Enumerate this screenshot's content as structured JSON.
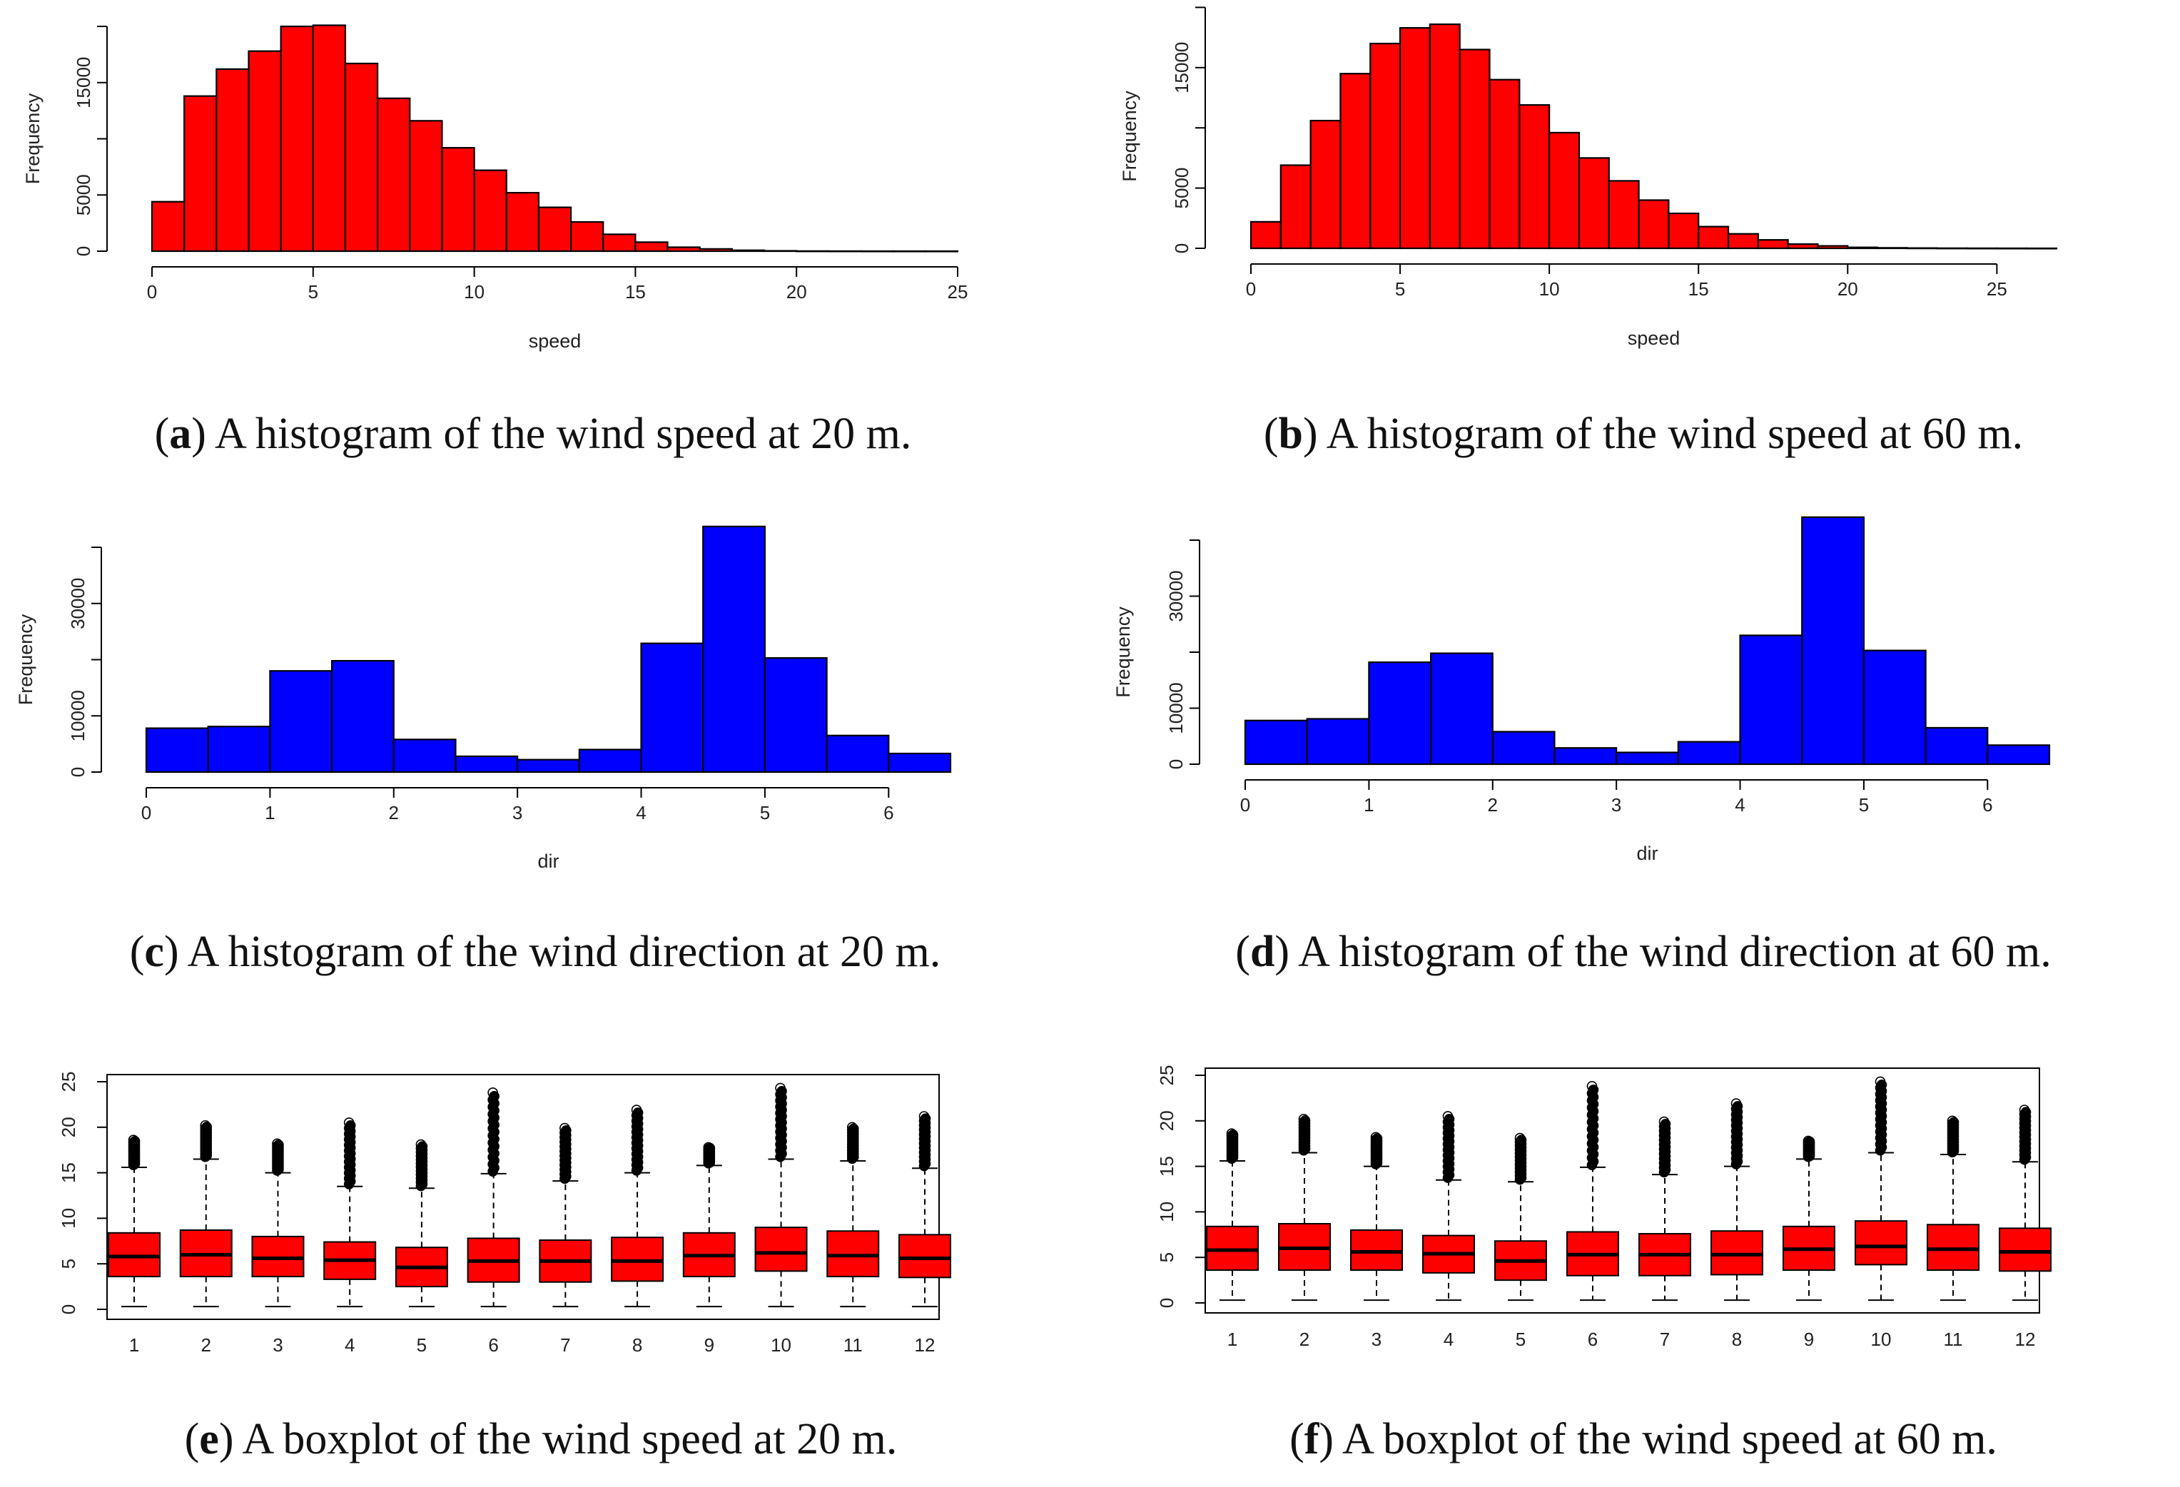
{
  "colors": {
    "speed_bar": "#ff0000",
    "dir_bar": "#0000ff",
    "box_fill": "#ff0000",
    "outline": "#000000"
  },
  "captions": [
    {
      "letter": "a",
      "text": ") A histogram of the wind speed at 20 m."
    },
    {
      "letter": "b",
      "text": ") A histogram of the wind speed at 60 m."
    },
    {
      "letter": "c",
      "text": ") A histogram of the wind direction at 20 m."
    },
    {
      "letter": "d",
      "text": ") A histogram of the wind direction at 60 m."
    },
    {
      "letter": "e",
      "text": ") A boxplot of the wind speed at 20 m."
    },
    {
      "letter": "f",
      "text": ") A boxplot of the wind speed at 60 m."
    }
  ],
  "chart_data": [
    {
      "type": "bar",
      "subtype": "histogram",
      "xlabel": "speed",
      "ylabel": "Frequency",
      "bin_width": 1,
      "bin_start": 0,
      "values": [
        4400,
        13800,
        16200,
        17800,
        20000,
        20100,
        16700,
        13600,
        11600,
        9200,
        7200,
        5200,
        3900,
        2600,
        1500,
        800,
        350,
        200,
        80,
        30,
        10,
        5,
        2,
        1,
        1
      ],
      "xlim": [
        0,
        25
      ],
      "ylim": [
        0,
        20000
      ],
      "xticks": [
        0,
        5,
        10,
        15,
        20,
        25
      ],
      "yticks": [
        0,
        5000,
        15000
      ]
    },
    {
      "type": "bar",
      "subtype": "histogram",
      "xlabel": "speed",
      "ylabel": "Frequency",
      "bin_width": 1,
      "bin_start": 0,
      "values": [
        2200,
        6900,
        10600,
        14500,
        17000,
        18300,
        18600,
        16500,
        14000,
        11900,
        9600,
        7500,
        5600,
        4000,
        2900,
        1800,
        1200,
        700,
        350,
        200,
        80,
        40,
        20,
        10,
        5,
        3,
        1
      ],
      "xlim": [
        0,
        27
      ],
      "ylim": [
        0,
        18600
      ],
      "xticks": [
        0,
        5,
        10,
        15,
        20,
        25
      ],
      "yticks": [
        0,
        5000,
        15000
      ]
    },
    {
      "type": "bar",
      "subtype": "histogram",
      "xlabel": "dir",
      "ylabel": "Frequency",
      "bin_width": 0.5,
      "bin_start": 0,
      "values": [
        7800,
        8100,
        18000,
        19800,
        5800,
        2800,
        2200,
        4000,
        22900,
        43700,
        20300,
        6500,
        3300
      ],
      "xlim": [
        0,
        6.5
      ],
      "ylim": [
        0,
        40000
      ],
      "xticks": [
        0,
        1,
        2,
        3,
        4,
        5,
        6
      ],
      "yticks": [
        0,
        10000,
        30000
      ]
    },
    {
      "type": "bar",
      "subtype": "histogram",
      "xlabel": "dir",
      "ylabel": "Frequency",
      "bin_width": 0.5,
      "bin_start": 0,
      "values": [
        7800,
        8100,
        18200,
        19800,
        5800,
        2900,
        2100,
        4000,
        23000,
        44100,
        20300,
        6500,
        3400
      ],
      "xlim": [
        0,
        6.5
      ],
      "ylim": [
        0,
        40000
      ],
      "xticks": [
        0,
        1,
        2,
        3,
        4,
        5,
        6
      ],
      "yticks": [
        0,
        10000,
        30000
      ]
    },
    {
      "type": "box",
      "categories": [
        "1",
        "2",
        "3",
        "4",
        "5",
        "6",
        "7",
        "8",
        "9",
        "10",
        "11",
        "12"
      ],
      "ylim": [
        0,
        25
      ],
      "yticks": [
        0,
        5,
        10,
        15,
        20,
        25
      ],
      "boxes": [
        {
          "min": 0.3,
          "q1": 3.6,
          "median": 5.8,
          "q3": 8.4,
          "max": 15.6,
          "outlier_top": 18.6
        },
        {
          "min": 0.3,
          "q1": 3.6,
          "median": 6.0,
          "q3": 8.7,
          "max": 16.5,
          "outlier_top": 20.2
        },
        {
          "min": 0.3,
          "q1": 3.6,
          "median": 5.6,
          "q3": 8.0,
          "max": 15.0,
          "outlier_top": 18.2
        },
        {
          "min": 0.3,
          "q1": 3.3,
          "median": 5.4,
          "q3": 7.4,
          "max": 13.5,
          "outlier_top": 20.5
        },
        {
          "min": 0.3,
          "q1": 2.5,
          "median": 4.6,
          "q3": 6.8,
          "max": 13.3,
          "outlier_top": 18.1
        },
        {
          "min": 0.3,
          "q1": 3.0,
          "median": 5.3,
          "q3": 7.8,
          "max": 14.9,
          "outlier_top": 23.8
        },
        {
          "min": 0.3,
          "q1": 3.0,
          "median": 5.3,
          "q3": 7.6,
          "max": 14.1,
          "outlier_top": 19.9
        },
        {
          "min": 0.3,
          "q1": 3.1,
          "median": 5.3,
          "q3": 7.9,
          "max": 15.0,
          "outlier_top": 21.9
        },
        {
          "min": 0.3,
          "q1": 3.6,
          "median": 5.9,
          "q3": 8.4,
          "max": 15.8,
          "outlier_top": 17.8
        },
        {
          "min": 0.3,
          "q1": 4.2,
          "median": 6.2,
          "q3": 9.0,
          "max": 16.5,
          "outlier_top": 24.3
        },
        {
          "min": 0.3,
          "q1": 3.6,
          "median": 5.9,
          "q3": 8.6,
          "max": 16.3,
          "outlier_top": 20.0
        },
        {
          "min": 0.3,
          "q1": 3.5,
          "median": 5.6,
          "q3": 8.2,
          "max": 15.5,
          "outlier_top": 21.2
        }
      ]
    },
    {
      "type": "box",
      "categories": [
        "1",
        "2",
        "3",
        "4",
        "5",
        "6",
        "7",
        "8",
        "9",
        "10",
        "11",
        "12"
      ],
      "ylim": [
        0,
        25
      ],
      "yticks": [
        0,
        5,
        10,
        15,
        20,
        25
      ],
      "boxes": [
        {
          "min": 0.3,
          "q1": 3.6,
          "median": 5.8,
          "q3": 8.4,
          "max": 15.6,
          "outlier_top": 18.6
        },
        {
          "min": 0.3,
          "q1": 3.6,
          "median": 6.0,
          "q3": 8.7,
          "max": 16.5,
          "outlier_top": 20.2
        },
        {
          "min": 0.3,
          "q1": 3.6,
          "median": 5.6,
          "q3": 8.0,
          "max": 15.0,
          "outlier_top": 18.2
        },
        {
          "min": 0.3,
          "q1": 3.3,
          "median": 5.4,
          "q3": 7.4,
          "max": 13.5,
          "outlier_top": 20.5
        },
        {
          "min": 0.3,
          "q1": 2.5,
          "median": 4.6,
          "q3": 6.8,
          "max": 13.3,
          "outlier_top": 18.1
        },
        {
          "min": 0.3,
          "q1": 3.0,
          "median": 5.3,
          "q3": 7.8,
          "max": 14.9,
          "outlier_top": 23.8
        },
        {
          "min": 0.3,
          "q1": 3.0,
          "median": 5.3,
          "q3": 7.6,
          "max": 14.1,
          "outlier_top": 19.9
        },
        {
          "min": 0.3,
          "q1": 3.1,
          "median": 5.3,
          "q3": 7.9,
          "max": 15.0,
          "outlier_top": 21.9
        },
        {
          "min": 0.3,
          "q1": 3.6,
          "median": 5.9,
          "q3": 8.4,
          "max": 15.8,
          "outlier_top": 17.8
        },
        {
          "min": 0.3,
          "q1": 4.2,
          "median": 6.2,
          "q3": 9.0,
          "max": 16.5,
          "outlier_top": 24.3
        },
        {
          "min": 0.3,
          "q1": 3.6,
          "median": 5.9,
          "q3": 8.6,
          "max": 16.3,
          "outlier_top": 20.0
        },
        {
          "min": 0.3,
          "q1": 3.5,
          "median": 5.6,
          "q3": 8.2,
          "max": 15.5,
          "outlier_top": 21.2
        }
      ]
    }
  ]
}
